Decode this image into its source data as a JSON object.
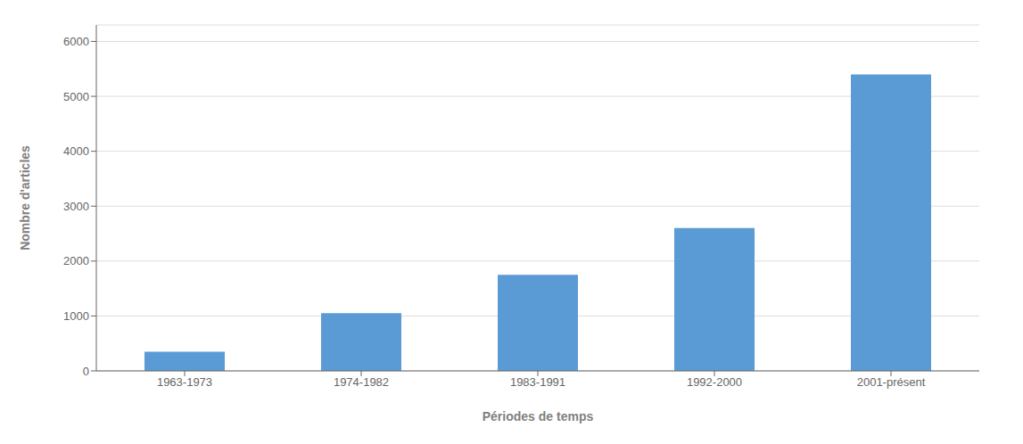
{
  "chart_data": {
    "type": "bar",
    "categories": [
      "1963-1973",
      "1974-1982",
      "1983-1991",
      "1992-2000",
      "2001-présent"
    ],
    "values": [
      350,
      1050,
      1750,
      2600,
      5400
    ],
    "color": "#5b9bd5",
    "xlabel": "Périodes de temps",
    "ylabel": "Nombre d'articles",
    "ylim": [
      0,
      6300
    ],
    "yticks": [
      0,
      1000,
      2000,
      3000,
      4000,
      5000,
      6000
    ],
    "grid": true
  }
}
